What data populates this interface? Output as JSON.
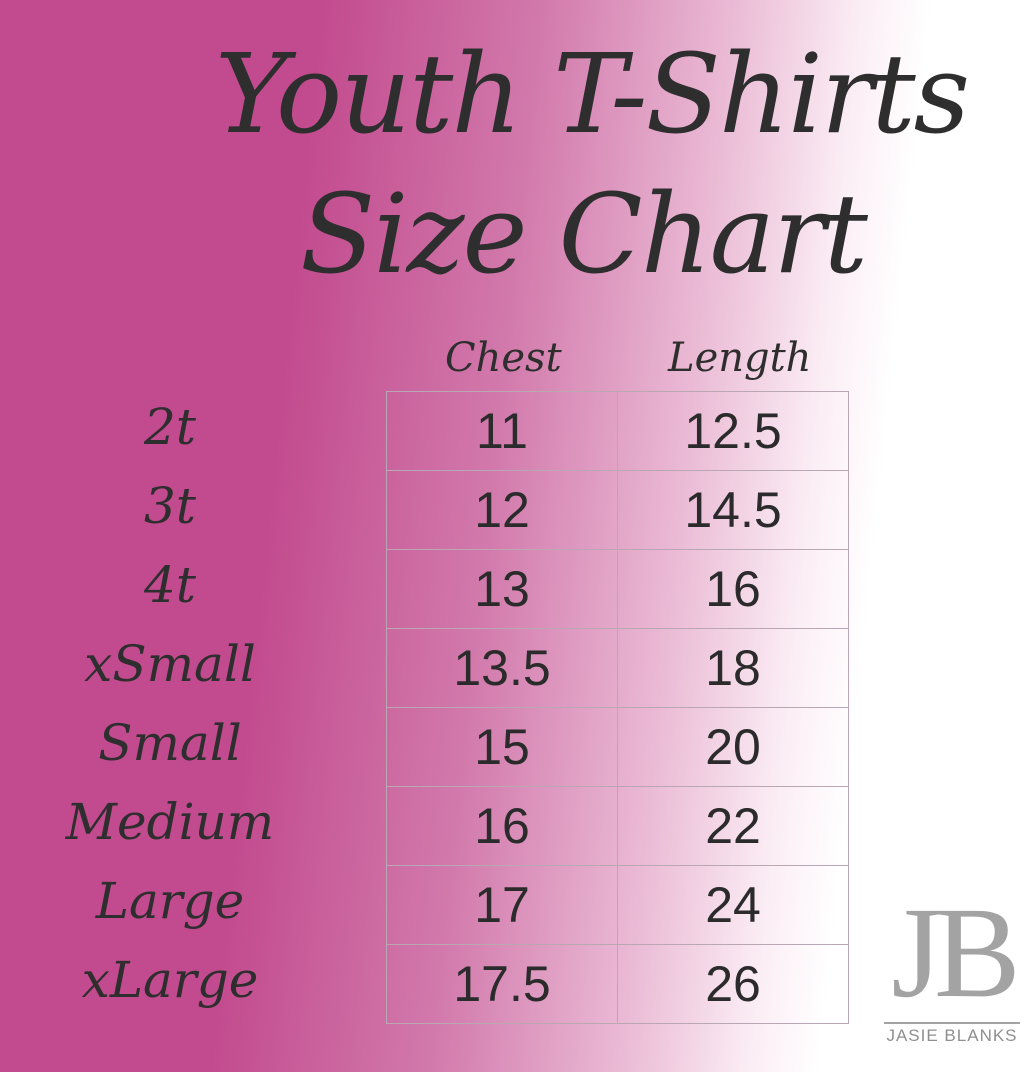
{
  "title_line1": "Youth T-Shirts",
  "title_line2": "Size Chart",
  "columns": [
    "Chest",
    "Length"
  ],
  "rows": [
    {
      "size": "2t",
      "chest": "11",
      "length": "12.5"
    },
    {
      "size": "3t",
      "chest": "12",
      "length": "14.5"
    },
    {
      "size": "4t",
      "chest": "13",
      "length": "16"
    },
    {
      "size": "xSmall",
      "chest": "13.5",
      "length": "18"
    },
    {
      "size": "Small",
      "chest": "15",
      "length": "20"
    },
    {
      "size": "Medium",
      "chest": "16",
      "length": "22"
    },
    {
      "size": "Large",
      "chest": "17",
      "length": "24"
    },
    {
      "size": "xLarge",
      "chest": "17.5",
      "length": "26"
    }
  ],
  "logo": {
    "initials": "JB",
    "name": "JASIE BLANKS"
  },
  "colors": {
    "magenta": "#c24a8e",
    "text": "#2b2b2b",
    "logo": "#a3a3a3"
  }
}
